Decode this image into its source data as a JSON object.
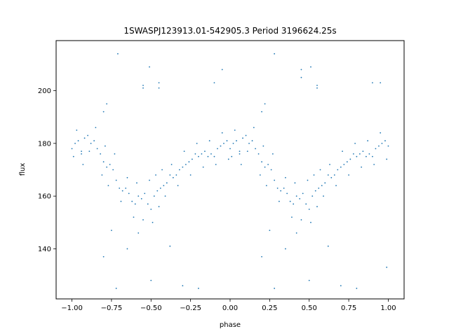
{
  "chart_data": {
    "type": "scatter",
    "title": "1SWASPJ123913.01-542905.3 Period 3196624.25s",
    "xlabel": "phase",
    "ylabel": "flux",
    "xlim": [
      -1.1,
      1.1
    ],
    "ylim": [
      121,
      219
    ],
    "xticks": [
      -1.0,
      -0.75,
      -0.5,
      -0.25,
      0.0,
      0.25,
      0.5,
      0.75,
      1.0
    ],
    "xtick_labels": [
      "−1.00",
      "−0.75",
      "−0.50",
      "−0.25",
      "0.00",
      "0.25",
      "0.50",
      "0.75",
      "1.00"
    ],
    "yticks": [
      140,
      160,
      180,
      200
    ],
    "ytick_labels": [
      "140",
      "160",
      "180",
      "200"
    ],
    "grid": false,
    "marker_color": "#1f77b4",
    "series": [
      {
        "points": [
          [
            0.0,
            178
          ],
          [
            0.02,
            180
          ],
          [
            0.04,
            181
          ],
          [
            0.06,
            177
          ],
          [
            0.08,
            182
          ],
          [
            0.1,
            183
          ],
          [
            0.12,
            180
          ],
          [
            0.14,
            181
          ],
          [
            0.16,
            178
          ],
          [
            0.18,
            176
          ],
          [
            0.2,
            173
          ],
          [
            0.22,
            171
          ],
          [
            0.24,
            172
          ],
          [
            0.26,
            170
          ],
          [
            0.28,
            166
          ],
          [
            0.3,
            163
          ],
          [
            0.32,
            162
          ],
          [
            0.34,
            163
          ],
          [
            0.36,
            161
          ],
          [
            0.38,
            158
          ],
          [
            0.4,
            157
          ],
          [
            0.42,
            160
          ],
          [
            0.44,
            159
          ],
          [
            0.46,
            161
          ],
          [
            0.48,
            157
          ],
          [
            0.5,
            155
          ],
          [
            0.52,
            160
          ],
          [
            0.54,
            162
          ],
          [
            0.56,
            163
          ],
          [
            0.58,
            164
          ],
          [
            0.6,
            165
          ],
          [
            0.62,
            168
          ],
          [
            0.64,
            167
          ],
          [
            0.66,
            168
          ],
          [
            0.68,
            170
          ],
          [
            0.7,
            171
          ],
          [
            0.72,
            172
          ],
          [
            0.74,
            173
          ],
          [
            0.76,
            174
          ],
          [
            0.78,
            176
          ],
          [
            0.8,
            175
          ],
          [
            0.82,
            176
          ],
          [
            0.84,
            177
          ],
          [
            0.86,
            175
          ],
          [
            0.88,
            176
          ],
          [
            0.9,
            175
          ],
          [
            0.92,
            178
          ],
          [
            0.94,
            179
          ],
          [
            0.96,
            180
          ],
          [
            0.98,
            181
          ],
          [
            1.0,
            179
          ],
          [
            -1.0,
            178
          ],
          [
            -0.98,
            180
          ],
          [
            -0.96,
            181
          ],
          [
            -0.94,
            177
          ],
          [
            -0.92,
            182
          ],
          [
            -0.9,
            183
          ],
          [
            -0.88,
            180
          ],
          [
            -0.86,
            181
          ],
          [
            -0.84,
            178
          ],
          [
            -0.82,
            176
          ],
          [
            -0.8,
            173
          ],
          [
            -0.78,
            171
          ],
          [
            -0.76,
            172
          ],
          [
            -0.74,
            170
          ],
          [
            -0.72,
            166
          ],
          [
            -0.7,
            163
          ],
          [
            -0.68,
            162
          ],
          [
            -0.66,
            163
          ],
          [
            -0.64,
            161
          ],
          [
            -0.62,
            158
          ],
          [
            -0.6,
            157
          ],
          [
            -0.58,
            160
          ],
          [
            -0.56,
            159
          ],
          [
            -0.54,
            161
          ],
          [
            -0.52,
            157
          ],
          [
            -0.5,
            155
          ],
          [
            -0.48,
            160
          ],
          [
            -0.46,
            162
          ],
          [
            -0.44,
            163
          ],
          [
            -0.42,
            164
          ],
          [
            -0.4,
            165
          ],
          [
            -0.38,
            168
          ],
          [
            -0.36,
            167
          ],
          [
            -0.34,
            168
          ],
          [
            -0.32,
            170
          ],
          [
            -0.3,
            171
          ],
          [
            -0.28,
            172
          ],
          [
            -0.26,
            173
          ],
          [
            -0.24,
            174
          ],
          [
            -0.22,
            176
          ],
          [
            -0.2,
            175
          ],
          [
            -0.18,
            176
          ],
          [
            -0.16,
            177
          ],
          [
            -0.14,
            175
          ],
          [
            -0.12,
            176
          ],
          [
            -0.1,
            175
          ],
          [
            -0.08,
            178
          ],
          [
            -0.06,
            179
          ],
          [
            -0.04,
            180
          ],
          [
            -0.02,
            181
          ],
          [
            -0.99,
            175
          ],
          [
            -0.97,
            185
          ],
          [
            -0.93,
            172
          ],
          [
            -0.89,
            177
          ],
          [
            -0.85,
            186
          ],
          [
            -0.81,
            168
          ],
          [
            -0.79,
            179
          ],
          [
            -0.77,
            164
          ],
          [
            -0.73,
            176
          ],
          [
            -0.69,
            158
          ],
          [
            -0.65,
            167
          ],
          [
            -0.61,
            152
          ],
          [
            -0.59,
            165
          ],
          [
            -0.55,
            151
          ],
          [
            -0.51,
            166
          ],
          [
            -0.49,
            150
          ],
          [
            -0.47,
            168
          ],
          [
            -0.45,
            156
          ],
          [
            -0.43,
            170
          ],
          [
            -0.41,
            160
          ],
          [
            -0.37,
            172
          ],
          [
            -0.33,
            164
          ],
          [
            -0.29,
            177
          ],
          [
            -0.25,
            168
          ],
          [
            -0.21,
            180
          ],
          [
            -0.17,
            171
          ],
          [
            -0.13,
            181
          ],
          [
            -0.09,
            172
          ],
          [
            -0.05,
            184
          ],
          [
            -0.01,
            174
          ],
          [
            0.01,
            175
          ],
          [
            0.03,
            185
          ],
          [
            0.07,
            172
          ],
          [
            0.11,
            177
          ],
          [
            0.15,
            186
          ],
          [
            0.19,
            168
          ],
          [
            0.21,
            179
          ],
          [
            0.23,
            164
          ],
          [
            0.27,
            176
          ],
          [
            0.31,
            158
          ],
          [
            0.35,
            167
          ],
          [
            0.39,
            152
          ],
          [
            0.41,
            165
          ],
          [
            0.45,
            151
          ],
          [
            0.49,
            166
          ],
          [
            0.51,
            150
          ],
          [
            0.53,
            168
          ],
          [
            0.55,
            156
          ],
          [
            0.57,
            170
          ],
          [
            0.59,
            160
          ],
          [
            0.63,
            172
          ],
          [
            0.67,
            164
          ],
          [
            0.71,
            177
          ],
          [
            0.75,
            168
          ],
          [
            0.79,
            180
          ],
          [
            0.83,
            171
          ],
          [
            0.87,
            181
          ],
          [
            0.91,
            172
          ],
          [
            0.95,
            184
          ],
          [
            0.99,
            174
          ],
          [
            -0.55,
            201
          ],
          [
            -0.55,
            202
          ],
          [
            -0.45,
            201
          ],
          [
            -0.45,
            203
          ],
          [
            0.45,
            208
          ],
          [
            0.45,
            205
          ],
          [
            0.55,
            201
          ],
          [
            0.55,
            202
          ],
          [
            -0.51,
            209
          ],
          [
            0.51,
            209
          ],
          [
            -0.71,
            214
          ],
          [
            0.28,
            214
          ],
          [
            -0.78,
            195
          ],
          [
            0.22,
            195
          ],
          [
            -0.8,
            192
          ],
          [
            0.2,
            192
          ],
          [
            -0.8,
            137
          ],
          [
            0.2,
            137
          ],
          [
            -0.72,
            125
          ],
          [
            0.28,
            125
          ],
          [
            -0.5,
            128
          ],
          [
            0.5,
            128
          ],
          [
            -0.3,
            126
          ],
          [
            0.7,
            126
          ],
          [
            -0.2,
            125
          ],
          [
            0.8,
            125
          ],
          [
            0.99,
            133
          ],
          [
            -0.94,
            176
          ],
          [
            0.06,
            176
          ],
          [
            -0.75,
            147
          ],
          [
            0.25,
            147
          ],
          [
            -0.65,
            140
          ],
          [
            0.35,
            140
          ],
          [
            -0.58,
            146
          ],
          [
            0.42,
            146
          ],
          [
            -0.38,
            141
          ],
          [
            0.62,
            141
          ],
          [
            -0.1,
            203
          ],
          [
            0.9,
            203
          ],
          [
            -0.05,
            208
          ],
          [
            0.95,
            203
          ]
        ]
      }
    ]
  }
}
